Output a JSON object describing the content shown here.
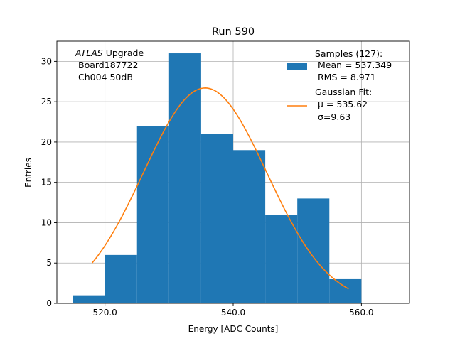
{
  "chart_data": {
    "type": "bar",
    "title": "Run 590",
    "xlabel": "Energy [ADC Counts]",
    "ylabel": "Entries",
    "xlim": [
      512.5,
      567.5
    ],
    "ylim": [
      0,
      32.5
    ],
    "xticks": [
      520,
      540,
      560
    ],
    "xtick_labels": [
      "520.0",
      "540.0",
      "560.0"
    ],
    "yticks": [
      0,
      5,
      10,
      15,
      20,
      25,
      30
    ],
    "ytick_labels": [
      "0",
      "5",
      "10",
      "15",
      "20",
      "25",
      "30"
    ],
    "grid": true,
    "bin_edges": [
      515,
      520,
      525,
      530,
      535,
      540,
      545,
      550,
      555,
      560
    ],
    "counts": [
      1,
      6,
      22,
      31,
      21,
      19,
      11,
      13,
      3
    ],
    "bar_color": "#1f77b4",
    "fit": {
      "type": "gaussian",
      "mu": 535.62,
      "sigma": 9.63,
      "amplitude": 26.7,
      "x_range": [
        518,
        558
      ],
      "color": "#ff7f0e"
    },
    "annotation": {
      "atlas": "ATLAS",
      "upgrade": " Upgrade",
      "line2": "Board187722",
      "line3": "Ch004 50dB"
    },
    "legend": {
      "placement": "top-right",
      "entries": [
        {
          "kind": "bar",
          "lines": [
            "Samples (127):",
            "Mean = 537.349",
            "RMS = 8.971"
          ]
        },
        {
          "kind": "line",
          "lines": [
            "Gaussian Fit:",
            "μ = 535.62",
            "σ=9.63"
          ]
        }
      ]
    }
  }
}
